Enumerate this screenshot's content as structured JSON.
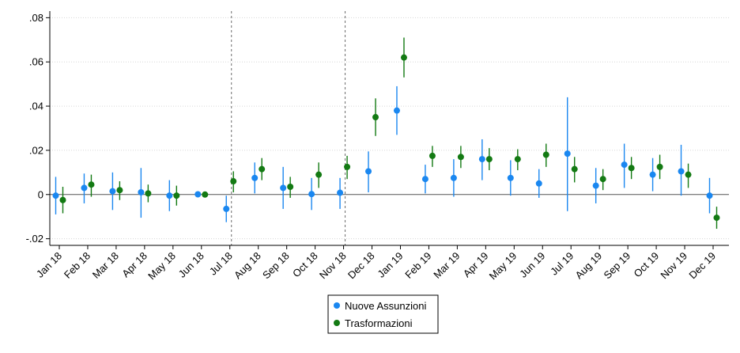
{
  "chart_data": {
    "type": "scatter",
    "title": "",
    "xlabel": "",
    "ylabel": "",
    "categories": [
      "Jan 18",
      "Feb 18",
      "Mar 18",
      "Apr 18",
      "May 18",
      "Jun 18",
      "Jul 18",
      "Aug 18",
      "Sep 18",
      "Oct 18",
      "Nov 18",
      "Dec 18",
      "Jan 19",
      "Feb 19",
      "Mar 19",
      "Apr 19",
      "May 19",
      "Jun 19",
      "Jul 19",
      "Aug 19",
      "Sep 19",
      "Oct 19",
      "Nov 19",
      "Dec 19"
    ],
    "yticks": [
      -0.02,
      0,
      0.02,
      0.04,
      0.06,
      0.08
    ],
    "ytick_labels": [
      "-.02",
      "0",
      ".02",
      ".04",
      ".06",
      ".08"
    ],
    "ylim": [
      -0.023,
      0.083
    ],
    "zero_line": 0,
    "vertical_reference_lines": [
      "Jul 18",
      "Nov 18"
    ],
    "grid": "horizontal, dotted",
    "legend_position": "bottom-center",
    "series": [
      {
        "name": "Nuove Assunzioni",
        "color": "#1a87f0",
        "values": [
          -0.0005,
          0.003,
          0.0015,
          0.001,
          -0.0005,
          0.0001,
          -0.0065,
          0.0075,
          0.003,
          0.0002,
          0.0008,
          0.0105,
          0.038,
          0.007,
          0.0075,
          0.016,
          0.0075,
          0.005,
          0.0185,
          0.004,
          0.0135,
          0.009,
          0.0105,
          -0.0005
        ],
        "ci_low": [
          -0.009,
          -0.004,
          -0.007,
          -0.0105,
          -0.0075,
          -0.0005,
          -0.0125,
          0.0005,
          -0.0065,
          -0.007,
          -0.0065,
          0.001,
          0.027,
          0.0005,
          -0.001,
          0.0065,
          -0.0005,
          -0.0015,
          -0.0075,
          -0.004,
          0.003,
          0.0015,
          -0.0005,
          -0.0085
        ],
        "ci_high": [
          0.008,
          0.0095,
          0.01,
          0.012,
          0.0065,
          0.0008,
          -0.0005,
          0.0145,
          0.0125,
          0.0075,
          0.0075,
          0.0195,
          0.049,
          0.0135,
          0.016,
          0.025,
          0.0155,
          0.0115,
          0.044,
          0.012,
          0.023,
          0.0165,
          0.0225,
          0.0075
        ]
      },
      {
        "name": "Trasformazioni",
        "color": "#137a13",
        "values": [
          -0.0025,
          0.0045,
          0.002,
          0.0005,
          -0.0005,
          0.0,
          0.006,
          0.0115,
          0.0035,
          0.009,
          0.0125,
          0.035,
          0.062,
          0.0175,
          0.017,
          0.016,
          0.016,
          0.018,
          0.0115,
          0.007,
          0.012,
          0.0125,
          0.009,
          -0.0105
        ],
        "ci_low": [
          -0.0085,
          -0.001,
          -0.0025,
          -0.0035,
          -0.005,
          -0.0005,
          0.001,
          0.0065,
          -0.0015,
          0.003,
          0.007,
          0.0265,
          0.053,
          0.0125,
          0.012,
          0.011,
          0.011,
          0.0125,
          0.0055,
          0.002,
          0.007,
          0.007,
          0.003,
          -0.0155
        ],
        "ci_high": [
          0.0035,
          0.009,
          0.006,
          0.0045,
          0.004,
          0.0005,
          0.0105,
          0.0165,
          0.008,
          0.0145,
          0.0175,
          0.0435,
          0.071,
          0.022,
          0.022,
          0.021,
          0.0205,
          0.023,
          0.017,
          0.0115,
          0.017,
          0.018,
          0.014,
          -0.0055
        ]
      }
    ]
  }
}
